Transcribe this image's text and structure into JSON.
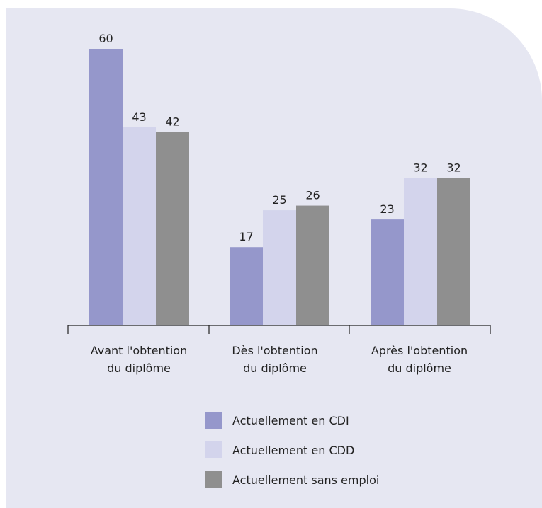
{
  "chart_data": {
    "type": "bar",
    "categories": [
      [
        "Avant l'obtention",
        "du diplôme"
      ],
      [
        "Dès l'obtention",
        "du diplôme"
      ],
      [
        "Après l'obtention",
        "du diplôme"
      ]
    ],
    "series": [
      {
        "name": "Actuellement en CDI",
        "color": "#9597cb",
        "values": [
          60,
          17,
          23
        ]
      },
      {
        "name": "Actuellement en CDD",
        "color": "#d3d4ec",
        "values": [
          43,
          25,
          32
        ]
      },
      {
        "name": "Actuellement sans emploi",
        "color": "#8f8f8f",
        "values": [
          42,
          26,
          32
        ]
      }
    ],
    "ylim": [
      0,
      60
    ],
    "grid": false,
    "legend_position": "bottom"
  },
  "legend": {
    "items": [
      {
        "label": "Actuellement en CDI",
        "color": "#9597cb"
      },
      {
        "label": "Actuellement en CDD",
        "color": "#d3d4ec"
      },
      {
        "label": "Actuellement sans emploi",
        "color": "#8f8f8f"
      }
    ]
  },
  "colors": {
    "background": "#e6e7f2",
    "axis": "#222222"
  }
}
